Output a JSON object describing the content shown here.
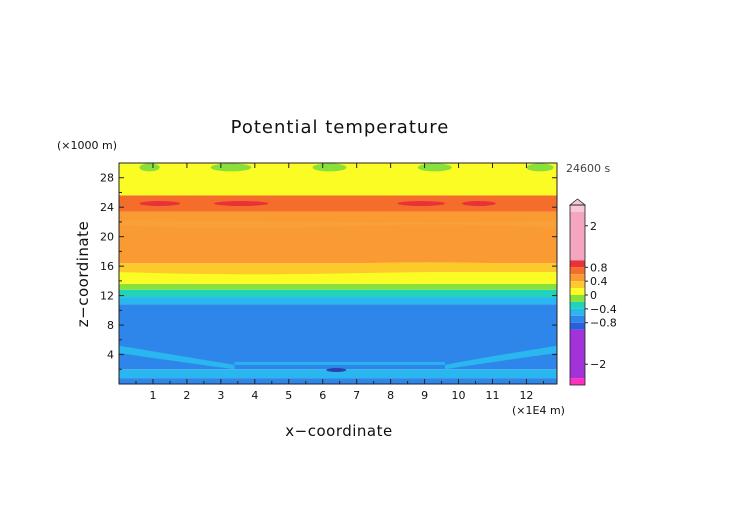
{
  "chart_data": {
    "type": "heatmap",
    "title": "Potential temperature",
    "xlabel": "x−coordinate",
    "ylabel": "z−coordinate",
    "x_unit": "(×1E4 m)",
    "y_unit": "(×1000 m)",
    "time_label": "24600 s",
    "xlim": [
      0,
      12.9
    ],
    "ylim": [
      0,
      30
    ],
    "x_ticks": [
      "1",
      "2",
      "3",
      "4",
      "5",
      "6",
      "7",
      "8",
      "9",
      "10",
      "11",
      "12"
    ],
    "y_ticks": [
      "4",
      "8",
      "12",
      "16",
      "20",
      "24",
      "28"
    ],
    "colorbar": {
      "range": [
        -2.6,
        2.6
      ],
      "labels": [
        "2",
        "0.8",
        "0.4",
        "0",
        "−0.4",
        "−0.8",
        "−2"
      ],
      "label_values": [
        2,
        0.8,
        0.4,
        0,
        -0.4,
        -0.8,
        -2
      ],
      "bands": [
        {
          "from": 2.4,
          "to": 2.6,
          "color": "#f7c8d8"
        },
        {
          "from": 1.0,
          "to": 2.4,
          "color": "#f5a6bf"
        },
        {
          "from": 0.8,
          "to": 1.0,
          "color": "#e8313a"
        },
        {
          "from": 0.6,
          "to": 0.8,
          "color": "#f46d2a"
        },
        {
          "from": 0.4,
          "to": 0.6,
          "color": "#fa9a32"
        },
        {
          "from": 0.2,
          "to": 0.4,
          "color": "#fdca2c"
        },
        {
          "from": 0.0,
          "to": 0.2,
          "color": "#fcfc25"
        },
        {
          "from": -0.2,
          "to": 0.0,
          "color": "#8ae03a"
        },
        {
          "from": -0.4,
          "to": -0.2,
          "color": "#1fd4b8"
        },
        {
          "from": -0.6,
          "to": -0.4,
          "color": "#2ab6ef"
        },
        {
          "from": -0.8,
          "to": -0.6,
          "color": "#2f86ea"
        },
        {
          "from": -1.0,
          "to": -0.8,
          "color": "#2a5fdc"
        },
        {
          "from": -2.4,
          "to": -1.0,
          "color": "#a133d8"
        },
        {
          "from": -2.6,
          "to": -2.4,
          "color": "#ff2fc0"
        }
      ]
    },
    "layers": [
      {
        "z_from": 0,
        "z_to": 0.8,
        "value": -0.7
      },
      {
        "z_from": 0.8,
        "z_to": 2.0,
        "value": -0.5
      },
      {
        "z_from": 2.0,
        "z_to": 10.8,
        "value": -0.7
      },
      {
        "z_from": 10.8,
        "z_to": 11.8,
        "value": -0.5
      },
      {
        "z_from": 11.8,
        "z_to": 12.8,
        "value": -0.3
      },
      {
        "z_from": 12.8,
        "z_to": 13.6,
        "value": -0.1
      },
      {
        "z_from": 13.6,
        "z_to": 15.2,
        "value": 0.1
      },
      {
        "z_from": 15.2,
        "z_to": 16.4,
        "value": 0.3
      },
      {
        "z_from": 16.4,
        "z_to": 23.4,
        "value": 0.5
      },
      {
        "z_from": 23.4,
        "z_to": 25.6,
        "value": 0.7
      },
      {
        "z_from": 25.6,
        "z_to": 30.0,
        "value": 0.1
      }
    ]
  }
}
